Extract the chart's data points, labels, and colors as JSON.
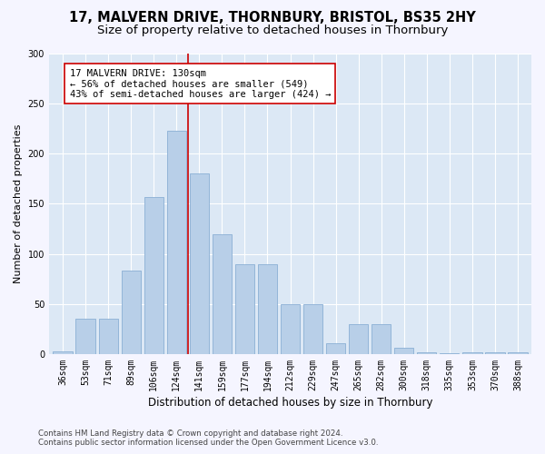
{
  "title": "17, MALVERN DRIVE, THORNBURY, BRISTOL, BS35 2HY",
  "subtitle": "Size of property relative to detached houses in Thornbury",
  "xlabel": "Distribution of detached houses by size in Thornbury",
  "ylabel": "Number of detached properties",
  "categories": [
    "36sqm",
    "53sqm",
    "71sqm",
    "89sqm",
    "106sqm",
    "124sqm",
    "141sqm",
    "159sqm",
    "177sqm",
    "194sqm",
    "212sqm",
    "229sqm",
    "247sqm",
    "265sqm",
    "282sqm",
    "300sqm",
    "318sqm",
    "335sqm",
    "353sqm",
    "370sqm",
    "388sqm"
  ],
  "values": [
    3,
    35,
    35,
    83,
    157,
    223,
    180,
    120,
    90,
    90,
    50,
    50,
    11,
    30,
    30,
    6,
    2,
    1,
    2,
    2,
    2
  ],
  "bar_color": "#b8cfe8",
  "bar_edgecolor": "#8aafd4",
  "vline_color": "#cc0000",
  "vline_pos": 5.5,
  "annotation_text": "17 MALVERN DRIVE: 130sqm\n← 56% of detached houses are smaller (549)\n43% of semi-detached houses are larger (424) →",
  "annotation_box_facecolor": "#ffffff",
  "annotation_box_edgecolor": "#cc0000",
  "ylim": [
    0,
    300
  ],
  "yticks": [
    0,
    50,
    100,
    150,
    200,
    250,
    300
  ],
  "plot_bgcolor": "#dce8f5",
  "fig_bgcolor": "#f5f5ff",
  "footer_text": "Contains HM Land Registry data © Crown copyright and database right 2024.\nContains public sector information licensed under the Open Government Licence v3.0.",
  "title_fontsize": 10.5,
  "subtitle_fontsize": 9.5,
  "xlabel_fontsize": 8.5,
  "ylabel_fontsize": 8,
  "tick_fontsize": 7,
  "annot_fontsize": 7.5,
  "footer_fontsize": 6.2
}
